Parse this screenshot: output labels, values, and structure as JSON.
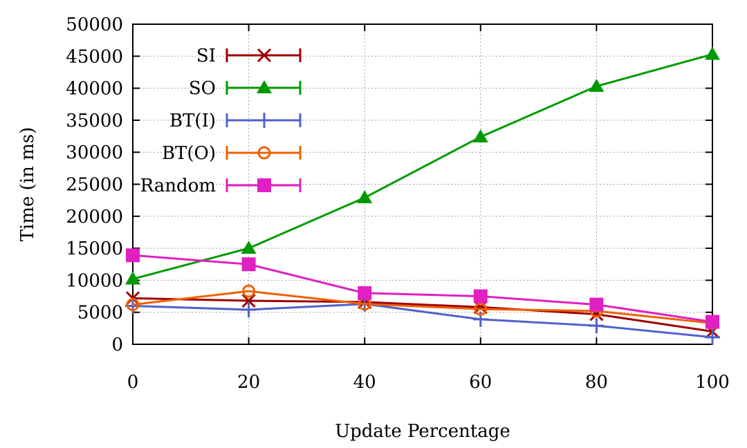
{
  "chart_data": {
    "type": "line",
    "xlabel": "Update Percentage",
    "ylabel": "Time (in ms)",
    "xlim": [
      0,
      100
    ],
    "ylim": [
      0,
      50000
    ],
    "x": [
      0,
      20,
      40,
      60,
      80,
      100
    ],
    "x_ticks": [
      "0",
      "20",
      "40",
      "60",
      "80",
      "100"
    ],
    "y_ticks": [
      "0",
      "5000",
      "10000",
      "15000",
      "20000",
      "25000",
      "30000",
      "35000",
      "40000",
      "45000",
      "50000"
    ],
    "grid": true,
    "legend_position": "top-left",
    "error_bars": true,
    "series": [
      {
        "name": "SI",
        "color": "#a00000",
        "marker": "x",
        "values": [
          7200,
          6800,
          6600,
          5800,
          4700,
          2000
        ]
      },
      {
        "name": "SO",
        "color": "#009a00",
        "marker": "triangle",
        "values": [
          10200,
          15000,
          22900,
          32400,
          40300,
          45300
        ]
      },
      {
        "name": "BT(I)",
        "color": "#5060cc",
        "marker": "plus",
        "values": [
          6000,
          5400,
          6300,
          3900,
          2900,
          1100
        ]
      },
      {
        "name": "BT(O)",
        "color": "#f06000",
        "marker": "circle",
        "values": [
          6200,
          8300,
          6300,
          5500,
          5200,
          3300
        ]
      },
      {
        "name": "Random",
        "color": "#e020c0",
        "marker": "square",
        "values": [
          13900,
          12500,
          8000,
          7500,
          6200,
          3500
        ]
      }
    ]
  }
}
